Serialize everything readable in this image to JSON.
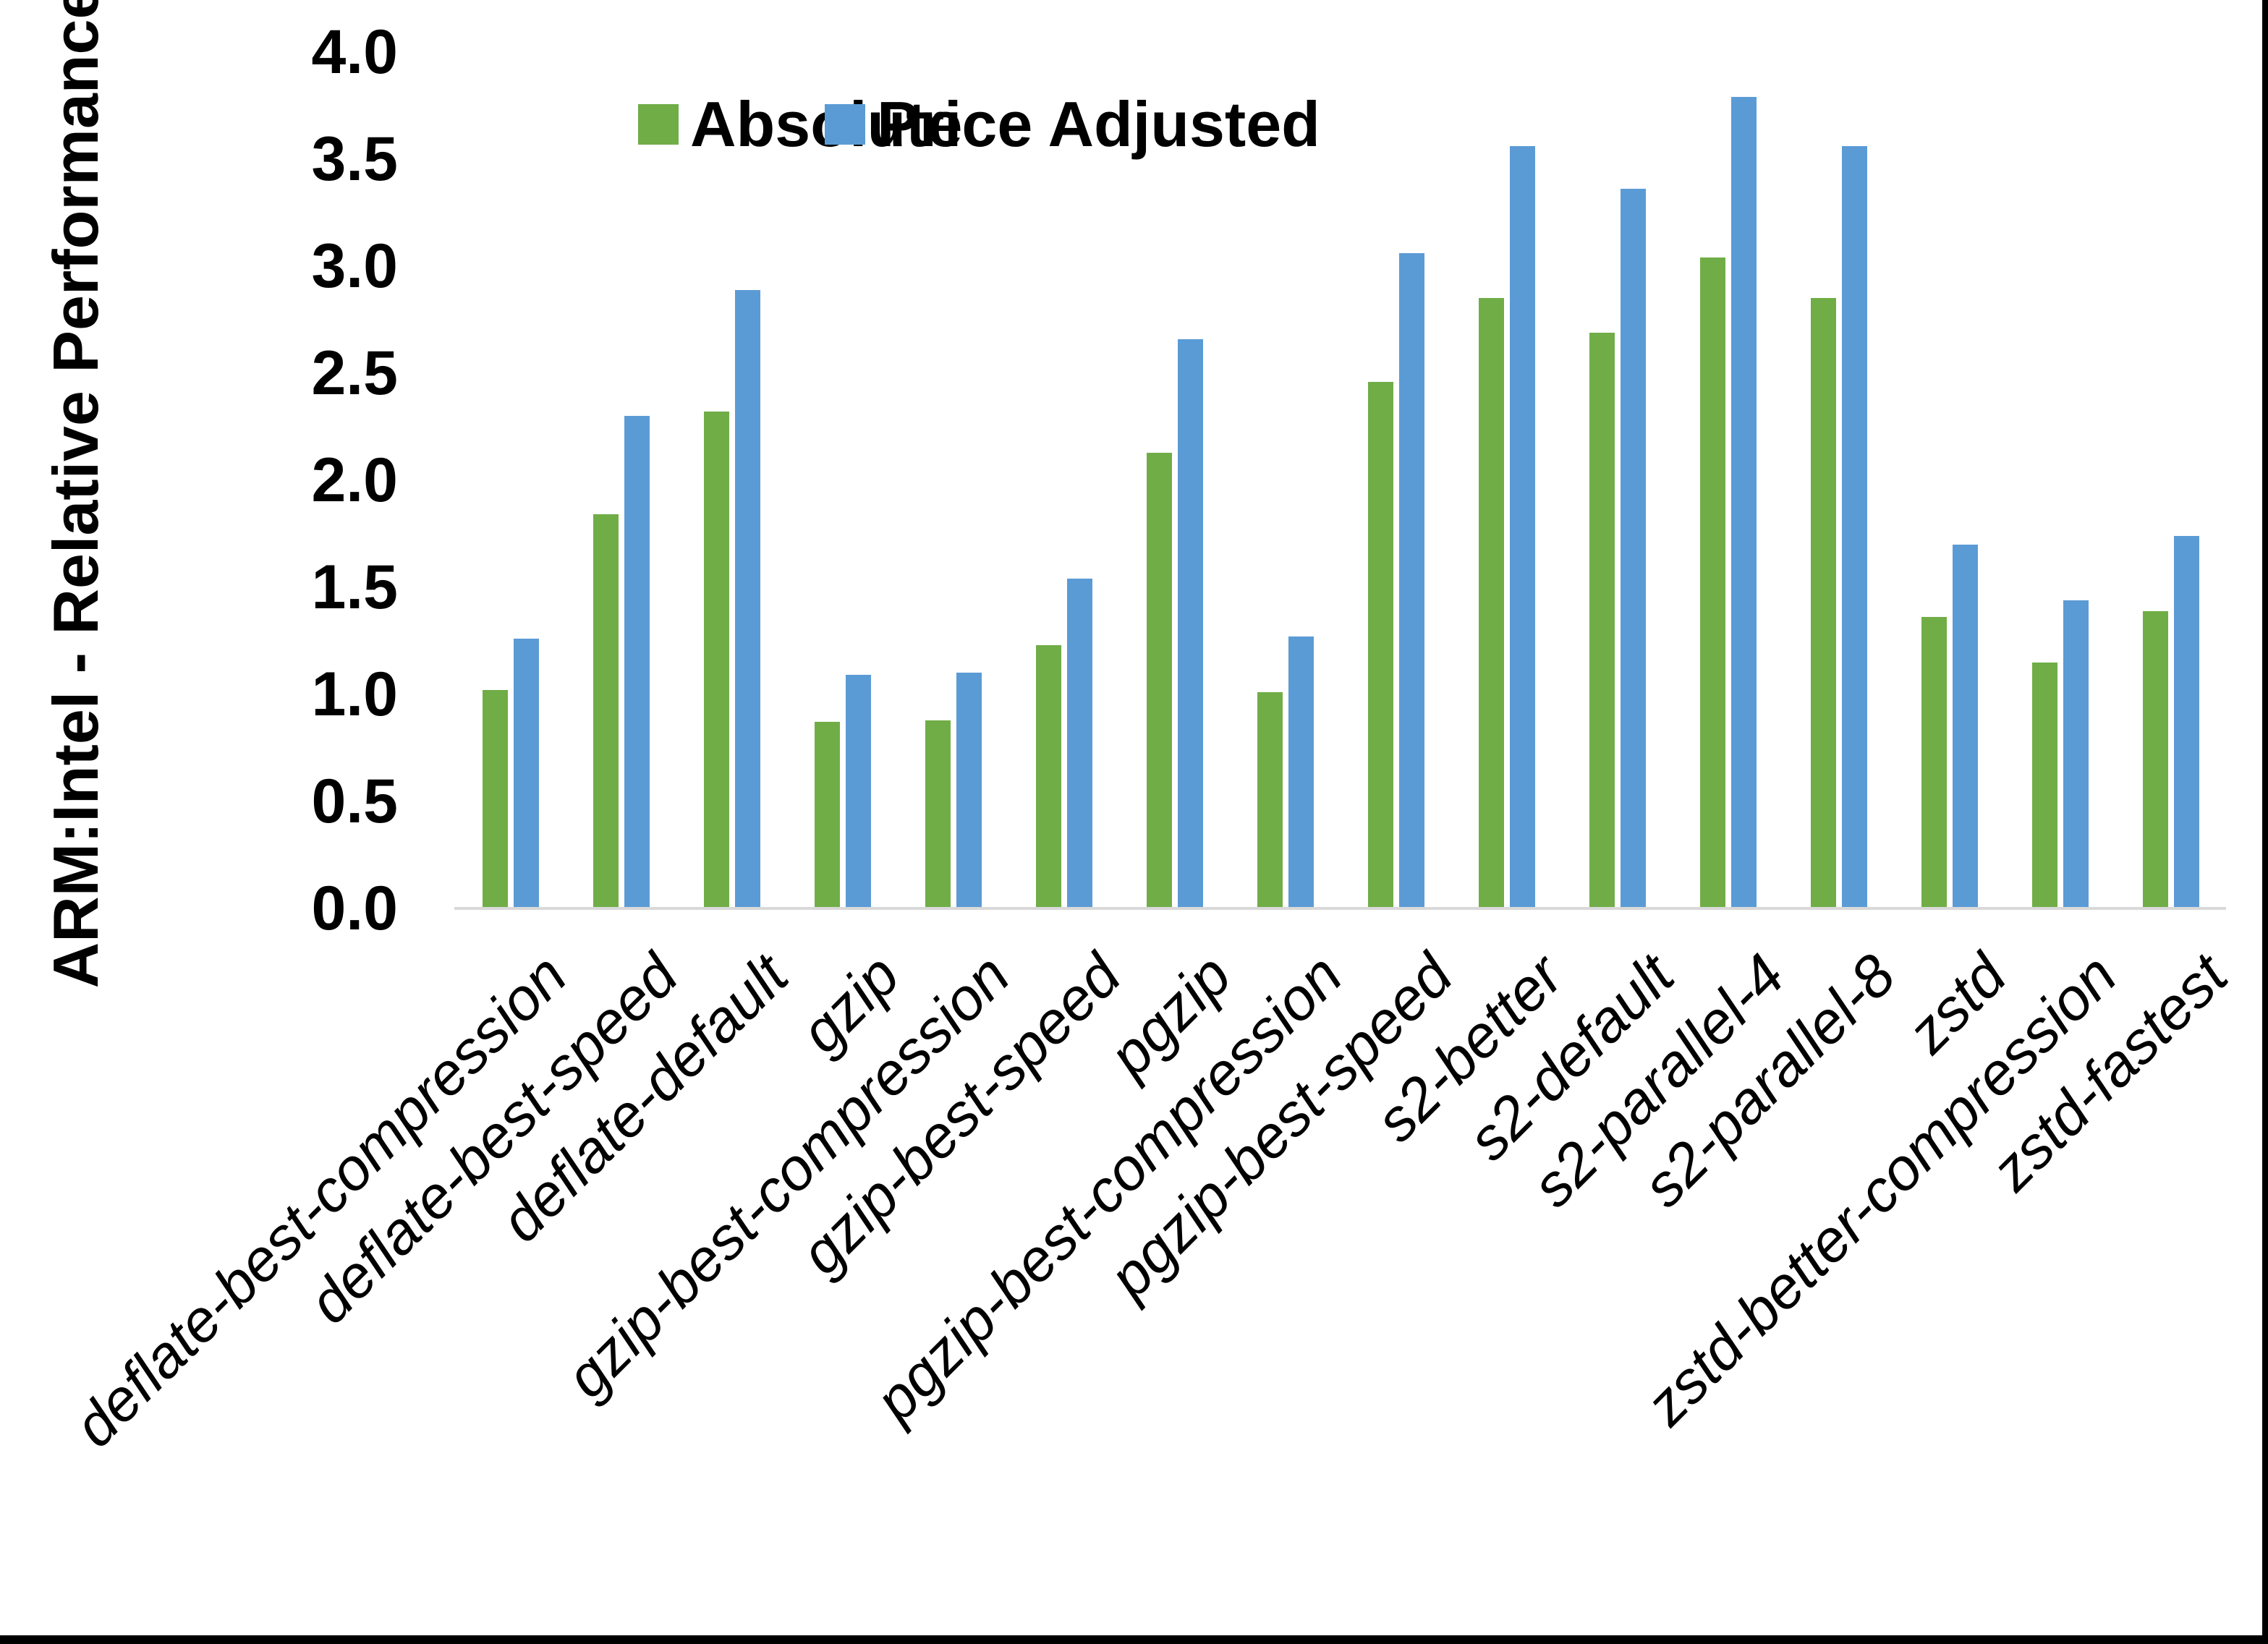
{
  "page": {
    "background": "#ffffff",
    "edge_bar_color": "#000000",
    "axis_line_color": "#d9d9d9",
    "text_color": "#000000"
  },
  "chart_data": {
    "type": "bar",
    "title": "",
    "xlabel": "",
    "ylabel": "ARM:Intel - Relative Performance",
    "ylim": [
      0.0,
      4.0
    ],
    "ytick_step": 0.5,
    "ytick_labels": [
      "4.0",
      "3.5",
      "3.0",
      "2.5",
      "2.0",
      "1.5",
      "1.0",
      "0.5",
      "0.0"
    ],
    "grid": false,
    "legend_position": "top-center",
    "categories": [
      "deflate-best-compression",
      "deflate-best-speed",
      "deflate-default",
      "gzip",
      "gzip-best-compression",
      "gzip-best-speed",
      "pgzip",
      "pgzip-best-compression",
      "pgzip-best-speed",
      "s2-better",
      "s2-default",
      "s2-parallel-4",
      "s2-parallel-8",
      "zstd",
      "zstd-better-compression",
      "zstd-fastest"
    ],
    "series": [
      {
        "name": "Absolute",
        "color": "#70AD47",
        "values": [
          1.02,
          1.84,
          2.32,
          0.87,
          0.88,
          1.23,
          2.13,
          1.01,
          2.46,
          2.85,
          2.69,
          3.04,
          2.85,
          1.36,
          1.15,
          1.39
        ]
      },
      {
        "name": "Price Adjusted",
        "color": "#5B9BD5",
        "values": [
          1.26,
          2.3,
          2.89,
          1.09,
          1.1,
          1.54,
          2.66,
          1.27,
          3.06,
          3.56,
          3.36,
          3.79,
          3.56,
          1.7,
          1.44,
          1.74
        ]
      }
    ]
  }
}
